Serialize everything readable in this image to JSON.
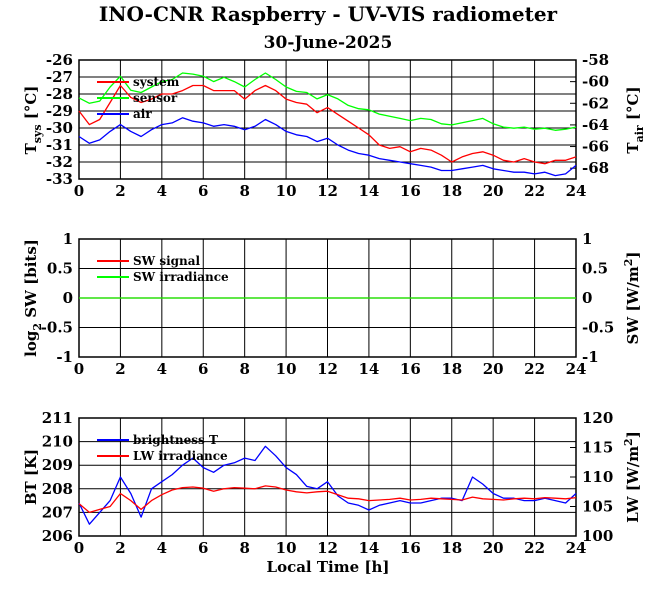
{
  "title": "INO-CNR Raspberry - UV-VIS radiometer",
  "date": "30-June-2025",
  "xlabel": "Local Time [h]",
  "chart_data": [
    {
      "type": "line",
      "ylabel_left": "T",
      "ylabel_left_sub": "sys",
      "ylabel_left_unit": "[°C]",
      "ylabel_right": "T",
      "ylabel_right_sub": "air",
      "ylabel_right_unit": "[°C]",
      "xlim": [
        0,
        24
      ],
      "ylim_left": [
        -33,
        -26
      ],
      "ylim_right": [
        -69,
        -58
      ],
      "xticks": [
        "0",
        "2",
        "4",
        "6",
        "8",
        "10",
        "12",
        "14",
        "16",
        "18",
        "20",
        "22",
        "24"
      ],
      "yticks_left": [
        "-26",
        "-27",
        "-28",
        "-29",
        "-30",
        "-31",
        "-32",
        "-33"
      ],
      "yticks_right": [
        "-58",
        "-60",
        "-62",
        "-64",
        "-66",
        "-68"
      ],
      "series": [
        {
          "name": "system",
          "color": "#ff0000",
          "axis": "left",
          "x": [
            0,
            0.5,
            1,
            1.5,
            2,
            2.5,
            3,
            3.5,
            4,
            4.5,
            5,
            5.5,
            6,
            6.5,
            7,
            7.5,
            8,
            8.5,
            9,
            9.5,
            10,
            10.5,
            11,
            11.5,
            12,
            12.5,
            13,
            13.5,
            14,
            14.5,
            15,
            15.5,
            16,
            16.5,
            17,
            17.5,
            18,
            18.5,
            19,
            19.5,
            20,
            20.5,
            21,
            21.5,
            22,
            22.5,
            23,
            23.5,
            24
          ],
          "y": [
            -29,
            -29.8,
            -29.5,
            -28.5,
            -27.5,
            -28.2,
            -28.5,
            -28.3,
            -28,
            -28,
            -27.8,
            -27.5,
            -27.5,
            -27.8,
            -27.8,
            -27.8,
            -28.3,
            -27.8,
            -27.5,
            -27.8,
            -28.3,
            -28.5,
            -28.6,
            -29.1,
            -28.8,
            -29.2,
            -29.6,
            -30,
            -30.4,
            -31,
            -31.2,
            -31.1,
            -31.4,
            -31.2,
            -31.3,
            -31.6,
            -32,
            -31.7,
            -31.5,
            -31.4,
            -31.6,
            -31.9,
            -32,
            -31.8,
            -32,
            -32.1,
            -31.9,
            -31.9,
            -31.7
          ]
        },
        {
          "name": "sensor",
          "color": "#00ff00",
          "axis": "right",
          "x": [
            0,
            0.5,
            1,
            1.5,
            2,
            2.5,
            3,
            3.5,
            4,
            4.5,
            5,
            5.5,
            6,
            6.5,
            7,
            7.5,
            8,
            8.5,
            9,
            9.5,
            10,
            10.5,
            11,
            11.5,
            12,
            12.5,
            13,
            13.5,
            14,
            14.5,
            15,
            15.5,
            16,
            16.5,
            17,
            17.5,
            18,
            18.5,
            19,
            19.5,
            20,
            20.5,
            21,
            21.5,
            22,
            22.5,
            23,
            23.5,
            24
          ],
          "y": [
            -61.5,
            -62,
            -61.8,
            -60.5,
            -59.5,
            -60.8,
            -61,
            -60.5,
            -60,
            -59.8,
            -59.2,
            -59.3,
            -59.5,
            -60,
            -59.6,
            -60,
            -60.5,
            -59.8,
            -59.2,
            -59.8,
            -60.5,
            -60.9,
            -61,
            -61.6,
            -61.2,
            -61.6,
            -62.2,
            -62.5,
            -62.6,
            -63,
            -63.2,
            -63.4,
            -63.6,
            -63.4,
            -63.5,
            -63.9,
            -64,
            -63.8,
            -63.6,
            -63.4,
            -63.9,
            -64.2,
            -64.3,
            -64.2,
            -64.4,
            -64.3,
            -64.5,
            -64.4,
            -64.2
          ]
        },
        {
          "name": "air",
          "color": "#0000ff",
          "axis": "left",
          "x": [
            0,
            0.5,
            1,
            1.5,
            2,
            2.5,
            3,
            3.5,
            4,
            4.5,
            5,
            5.5,
            6,
            6.5,
            7,
            7.5,
            8,
            8.5,
            9,
            9.5,
            10,
            10.5,
            11,
            11.5,
            12,
            12.5,
            13,
            13.5,
            14,
            14.5,
            15,
            15.5,
            16,
            16.5,
            17,
            17.5,
            18,
            18.5,
            19,
            19.5,
            20,
            20.5,
            21,
            21.5,
            22,
            22.5,
            23,
            23.5,
            24
          ],
          "y": [
            -30.5,
            -30.9,
            -30.7,
            -30.2,
            -29.8,
            -30.2,
            -30.5,
            -30.1,
            -29.8,
            -29.7,
            -29.4,
            -29.6,
            -29.7,
            -29.9,
            -29.8,
            -29.9,
            -30.1,
            -29.9,
            -29.5,
            -29.8,
            -30.2,
            -30.4,
            -30.5,
            -30.8,
            -30.6,
            -31,
            -31.3,
            -31.5,
            -31.6,
            -31.8,
            -31.9,
            -32,
            -32.1,
            -32.2,
            -32.3,
            -32.5,
            -32.5,
            -32.4,
            -32.3,
            -32.2,
            -32.4,
            -32.5,
            -32.6,
            -32.6,
            -32.7,
            -32.6,
            -32.8,
            -32.7,
            -32.2
          ]
        }
      ]
    },
    {
      "type": "line",
      "ylabel_left": "log",
      "ylabel_left_sub": "2",
      "ylabel_left_unit": "SW [bits]",
      "ylabel_right": "SW [W/m",
      "ylabel_right_sup": "2",
      "ylabel_right_end": "]",
      "xlim": [
        0,
        24
      ],
      "ylim_left": [
        -1,
        1
      ],
      "ylim_right": [
        -1,
        1
      ],
      "xticks": [
        "0",
        "2",
        "4",
        "6",
        "8",
        "10",
        "12",
        "14",
        "16",
        "18",
        "20",
        "22",
        "24"
      ],
      "yticks_left": [
        "1",
        "0.5",
        "0",
        "-0.5",
        "-1"
      ],
      "yticks_right": [
        "1",
        "0.5",
        "0",
        "-0.5",
        "-1"
      ],
      "series": [
        {
          "name": "SW signal",
          "color": "#ff0000",
          "axis": "left",
          "x": [
            0,
            24
          ],
          "y": [
            0,
            0
          ]
        },
        {
          "name": "SW irradiance",
          "color": "#00ff00",
          "axis": "right",
          "x": [
            0,
            24
          ],
          "y": [
            0,
            0
          ]
        }
      ]
    },
    {
      "type": "line",
      "ylabel_left": "BT [K]",
      "ylabel_right": "LW [W/m",
      "ylabel_right_sup": "2",
      "ylabel_right_end": "]",
      "xlim": [
        0,
        24
      ],
      "ylim_left": [
        206,
        211
      ],
      "ylim_right": [
        100,
        120
      ],
      "xticks": [
        "0",
        "2",
        "4",
        "6",
        "8",
        "10",
        "12",
        "14",
        "16",
        "18",
        "20",
        "22",
        "24"
      ],
      "yticks_left": [
        "211",
        "210",
        "209",
        "208",
        "207",
        "206"
      ],
      "yticks_right": [
        "120",
        "115",
        "110",
        "105",
        "100"
      ],
      "series": [
        {
          "name": "brightness T",
          "color": "#0000ff",
          "axis": "left",
          "x": [
            0,
            0.5,
            1,
            1.5,
            2,
            2.5,
            3,
            3.5,
            4,
            4.5,
            5,
            5.5,
            6,
            6.5,
            7,
            7.5,
            8,
            8.5,
            9,
            9.5,
            10,
            10.5,
            11,
            11.5,
            12,
            12.5,
            13,
            13.5,
            14,
            14.5,
            15,
            15.5,
            16,
            16.5,
            17,
            17.5,
            18,
            18.5,
            19,
            19.5,
            20,
            20.5,
            21,
            21.5,
            22,
            22.5,
            23,
            23.5,
            24
          ],
          "y": [
            207.4,
            206.5,
            207,
            207.5,
            208.5,
            207.8,
            206.8,
            208,
            208.3,
            208.6,
            209,
            209.3,
            208.9,
            208.7,
            209,
            209.1,
            209.3,
            209.2,
            209.8,
            209.4,
            208.9,
            208.6,
            208.1,
            208,
            208.3,
            207.7,
            207.4,
            207.3,
            207.1,
            207.3,
            207.4,
            207.5,
            207.4,
            207.4,
            207.5,
            207.6,
            207.6,
            207.5,
            208.5,
            208.2,
            207.8,
            207.6,
            207.6,
            207.5,
            207.5,
            207.6,
            207.5,
            207.4,
            207.8
          ]
        },
        {
          "name": "LW irradiance",
          "color": "#ff0000",
          "axis": "right",
          "x": [
            0,
            0.5,
            1,
            1.5,
            2,
            2.5,
            3,
            3.5,
            4,
            4.5,
            5,
            5.5,
            6,
            6.5,
            7,
            7.5,
            8,
            8.5,
            9,
            9.5,
            10,
            10.5,
            11,
            11.5,
            12,
            12.5,
            13,
            13.5,
            14,
            14.5,
            15,
            15.5,
            16,
            16.5,
            17,
            17.5,
            18,
            18.5,
            19,
            19.5,
            20,
            20.5,
            21,
            21.5,
            22,
            22.5,
            23,
            23.5,
            24
          ],
          "y": [
            105.5,
            104,
            104.5,
            105,
            107.2,
            106,
            104.5,
            106,
            107,
            107.8,
            108.2,
            108.3,
            108.1,
            107.6,
            108,
            108.2,
            108.1,
            108,
            108.5,
            108.3,
            107.8,
            107.5,
            107.3,
            107.5,
            107.6,
            107,
            106.4,
            106.3,
            106,
            106.1,
            106.2,
            106.4,
            106.1,
            106.2,
            106.4,
            106.3,
            106.2,
            106.1,
            106.6,
            106.3,
            106.2,
            106.1,
            106.3,
            106.4,
            106.3,
            106.5,
            106.4,
            106.3,
            106.5
          ]
        }
      ]
    }
  ]
}
